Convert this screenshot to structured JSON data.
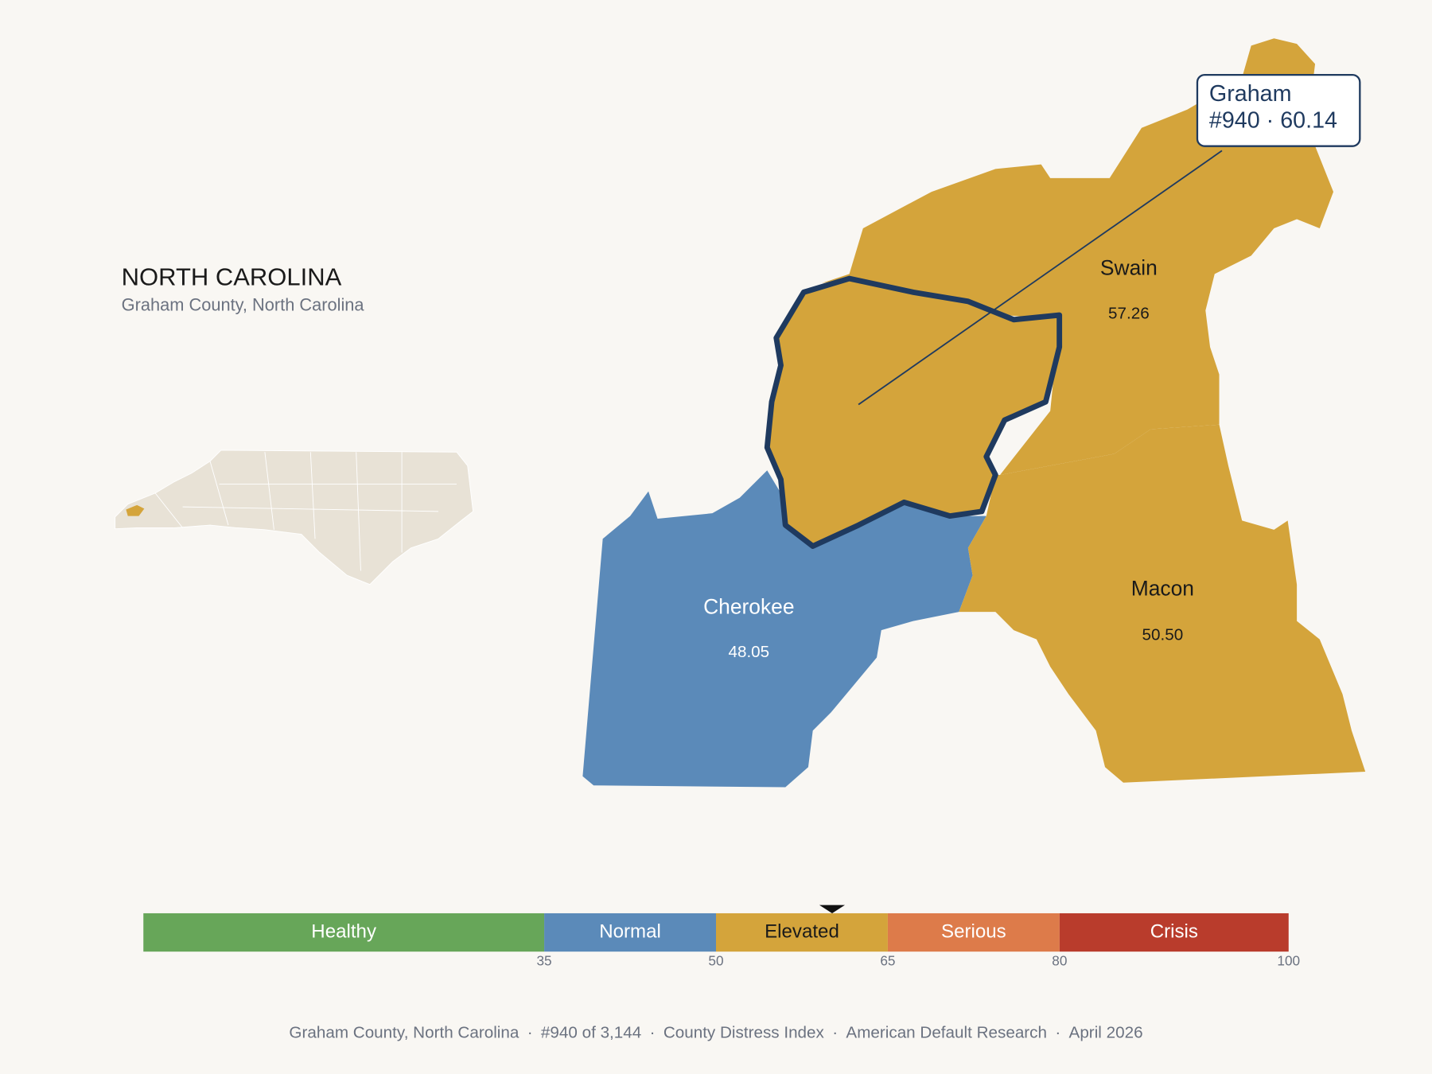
{
  "header": {
    "title": "NORTH CAROLINA",
    "subtitle": "Graham County, North Carolina"
  },
  "callout": {
    "name": "Graham",
    "label": "#940 · 60.14",
    "index_value": 60.14
  },
  "counties": [
    {
      "name": "Swain",
      "value": "57.26",
      "color": "#d4a43b",
      "text_color": "#1a1a1a"
    },
    {
      "name": "Cherokee",
      "value": "48.05",
      "color": "#5b8ab9",
      "text_color": "#ffffff"
    },
    {
      "name": "Macon",
      "value": "50.50",
      "color": "#d4a43b",
      "text_color": "#1a1a1a"
    }
  ],
  "highlight": {
    "color": "#d4a43b",
    "outline": "#1f3a5f"
  },
  "scale": {
    "range": [
      0,
      100
    ],
    "ticks": [
      35,
      50,
      65,
      80,
      100
    ],
    "bands": [
      {
        "label": "Healthy",
        "color": "#67a659",
        "text_color": "#ffffff"
      },
      {
        "label": "Normal",
        "color": "#5b8ab9",
        "text_color": "#ffffff"
      },
      {
        "label": "Elevated",
        "color": "#d4a43b",
        "text_color": "#1a1a1a"
      },
      {
        "label": "Serious",
        "color": "#dd7b4a",
        "text_color": "#ffffff"
      },
      {
        "label": "Crisis",
        "color": "#b93c2c",
        "text_color": "#ffffff"
      }
    ]
  },
  "footer": {
    "items": [
      "Graham County, North Carolina",
      "#940 of 3,144",
      "County Distress Index",
      "American Default Research",
      "April 2026"
    ],
    "separator": "·"
  }
}
